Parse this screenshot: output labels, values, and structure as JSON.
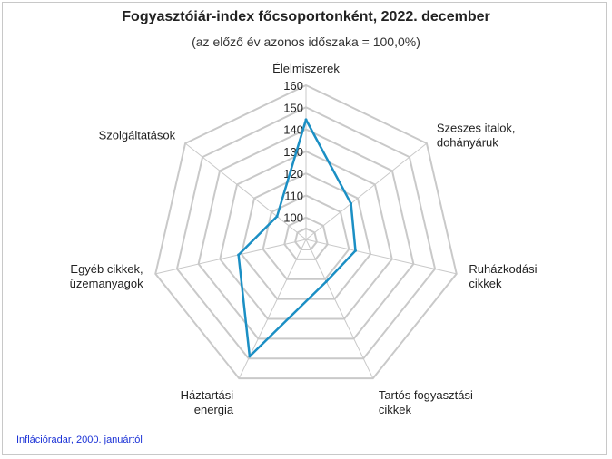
{
  "chart_data": {
    "type": "radar",
    "title": "Fogyasztóiár-index főcsoportonként, 2022. december",
    "subtitle": "(az előző év azonos időszaka = 100,0%)",
    "categories": [
      [
        "Élelmiszerek"
      ],
      [
        "Szeszes italok,",
        "dohányáruk"
      ],
      [
        "Ruházkodási",
        "cikkek"
      ],
      [
        "Tartós fogyasztási",
        "cikkek"
      ],
      [
        "Háztartási",
        "energia"
      ],
      [
        "Egyéb cikkek,",
        "üzemanyagok"
      ],
      [
        "Szolgáltatások"
      ]
    ],
    "values": [
      144.4,
      116.1,
      113.0,
      111.2,
      148.9,
      121.4,
      106.8
    ],
    "rlim": [
      90,
      160
    ],
    "ticks": [
      100,
      110,
      120,
      130,
      140,
      150,
      160
    ],
    "series_color": "#1b8fc4",
    "grid_color": "#c9c9c9"
  },
  "footer": {
    "link_text": "Inflációradar, 2000. januártól"
  }
}
